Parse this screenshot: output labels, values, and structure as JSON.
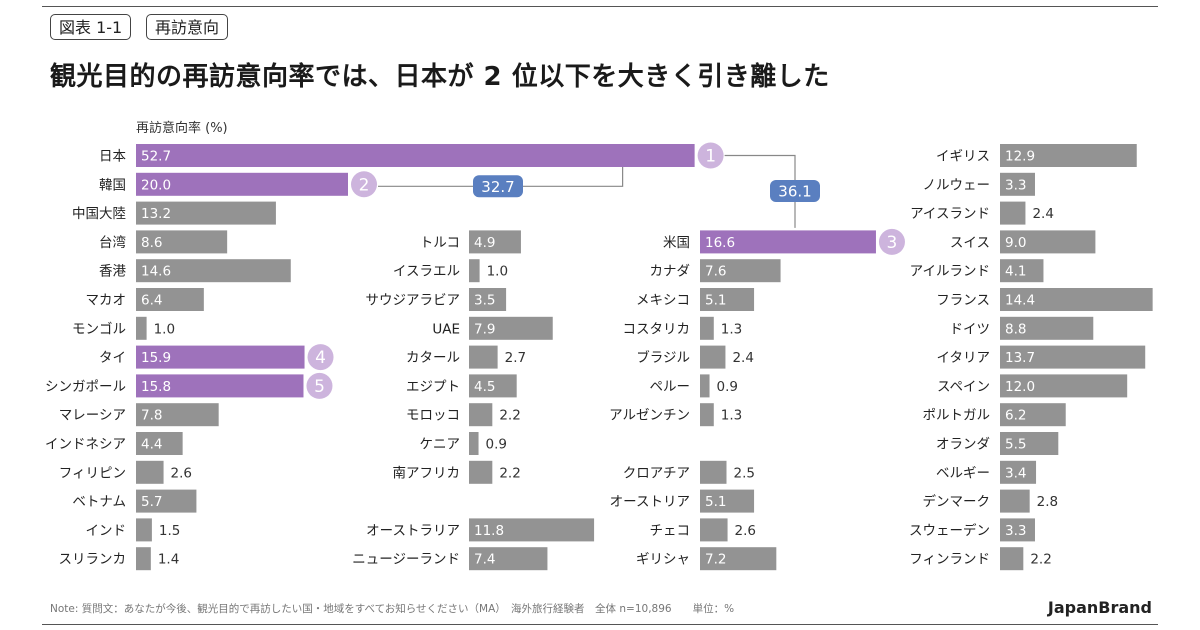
{
  "header": {
    "figure_label": "図表 1-1",
    "topic_label": "再訪意向",
    "title": "観光目的の再訪意向率では、日本が 2 位以下を大きく引き離した"
  },
  "chart_data": {
    "type": "bar",
    "orientation": "horizontal",
    "title": "観光目的の再訪意向率では、日本が 2 位以下を大きく引き離した",
    "ylabel": "再訪意向率 (%)",
    "highlight_color": "#9e72bb",
    "default_color": "#939393",
    "rank_badge_color": "#cdb4dd",
    "gap_badge_color": "#5a7fc0",
    "columns": [
      {
        "name": "asia",
        "items": [
          {
            "label": "日本",
            "value": 52.7,
            "rank": "1"
          },
          {
            "label": "韓国",
            "value": 20.0,
            "rank": "2"
          },
          {
            "label": "中国大陸",
            "value": 13.2
          },
          {
            "label": "台湾",
            "value": 8.6
          },
          {
            "label": "香港",
            "value": 14.6
          },
          {
            "label": "マカオ",
            "value": 6.4
          },
          {
            "label": "モンゴル",
            "value": 1.0
          },
          {
            "label": "タイ",
            "value": 15.9,
            "rank": "4"
          },
          {
            "label": "シンガポール",
            "value": 15.8,
            "rank": "5"
          },
          {
            "label": "マレーシア",
            "value": 7.8
          },
          {
            "label": "インドネシア",
            "value": 4.4
          },
          {
            "label": "フィリピン",
            "value": 2.6
          },
          {
            "label": "ベトナム",
            "value": 5.7
          },
          {
            "label": "インド",
            "value": 1.5
          },
          {
            "label": "スリランカ",
            "value": 1.4
          }
        ]
      },
      {
        "name": "middle-east-africa-oceania",
        "items": [
          {
            "row": 3,
            "label": "トルコ",
            "value": 4.9
          },
          {
            "row": 4,
            "label": "イスラエル",
            "value": 1.0
          },
          {
            "row": 5,
            "label": "サウジアラビア",
            "value": 3.5
          },
          {
            "row": 6,
            "label": "UAE",
            "value": 7.9
          },
          {
            "row": 7,
            "label": "カタール",
            "value": 2.7
          },
          {
            "row": 8,
            "label": "エジプト",
            "value": 4.5
          },
          {
            "row": 9,
            "label": "モロッコ",
            "value": 2.2
          },
          {
            "row": 10,
            "label": "ケニア",
            "value": 0.9
          },
          {
            "row": 11,
            "label": "南アフリカ",
            "value": 2.2
          },
          {
            "row": 13,
            "label": "オーストラリア",
            "value": 11.8
          },
          {
            "row": 14,
            "label": "ニュージーランド",
            "value": 7.4
          }
        ]
      },
      {
        "name": "americas-central-europe",
        "items": [
          {
            "row": 3,
            "label": "米国",
            "value": 16.6,
            "rank": "3"
          },
          {
            "row": 4,
            "label": "カナダ",
            "value": 7.6
          },
          {
            "row": 5,
            "label": "メキシコ",
            "value": 5.1
          },
          {
            "row": 6,
            "label": "コスタリカ",
            "value": 1.3
          },
          {
            "row": 7,
            "label": "ブラジル",
            "value": 2.4
          },
          {
            "row": 8,
            "label": "ペルー",
            "value": 0.9
          },
          {
            "row": 9,
            "label": "アルゼンチン",
            "value": 1.3
          },
          {
            "row": 11,
            "label": "クロアチア",
            "value": 2.5
          },
          {
            "row": 12,
            "label": "オーストリア",
            "value": 5.1
          },
          {
            "row": 13,
            "label": "チェコ",
            "value": 2.6
          },
          {
            "row": 14,
            "label": "ギリシャ",
            "value": 7.2
          }
        ]
      },
      {
        "name": "europe",
        "items": [
          {
            "label": "イギリス",
            "value": 12.9
          },
          {
            "label": "ノルウェー",
            "value": 3.3
          },
          {
            "label": "アイスランド",
            "value": 2.4
          },
          {
            "label": "スイス",
            "value": 9.0
          },
          {
            "label": "アイルランド",
            "value": 4.1
          },
          {
            "label": "フランス",
            "value": 14.4
          },
          {
            "label": "ドイツ",
            "value": 8.8
          },
          {
            "label": "イタリア",
            "value": 13.7
          },
          {
            "label": "スペイン",
            "value": 12.0
          },
          {
            "label": "ポルトガル",
            "value": 6.2
          },
          {
            "label": "オランダ",
            "value": 5.5
          },
          {
            "label": "ベルギー",
            "value": 3.4
          },
          {
            "label": "デンマーク",
            "value": 2.8
          },
          {
            "label": "スウェーデン",
            "value": 3.3
          },
          {
            "label": "フィンランド",
            "value": 2.2
          }
        ]
      }
    ],
    "annotations": [
      {
        "name": "gap-japan-korea",
        "text": "32.7"
      },
      {
        "name": "gap-japan-us",
        "text": "36.1"
      }
    ]
  },
  "footer": {
    "note": "Note: 質問文：あなたが今後、観光目的で再訪したい国・地域をすべてお知らせください（MA）　海外旅行経験者　全体 n=10,896　　単位：%",
    "brand": "JapanBrand"
  }
}
